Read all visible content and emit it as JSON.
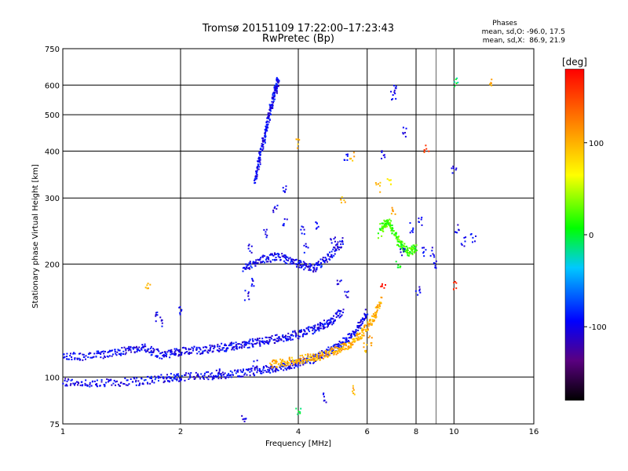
{
  "chart_data": {
    "type": "scatter",
    "title": "Tromsø 20151109 17:22:00–17:23:43",
    "subtitle": "RwPretec (Bp)",
    "xlabel": "Frequency [MHz]",
    "ylabel": "Stationary phase Virtual Height [km]",
    "x_scale": "log",
    "y_scale": "log",
    "xlim": [
      1,
      16
    ],
    "ylim": [
      75,
      750
    ],
    "x_ticks": [
      1,
      2,
      4,
      6,
      8,
      10,
      16
    ],
    "y_ticks": [
      75,
      100,
      200,
      300,
      400,
      500,
      600,
      750
    ],
    "grid": true,
    "phase_info": {
      "title": "Phases",
      "line1": "mean, sd,O: -96.0, 17.5",
      "line2": "mean, sd,X:  86.9, 21.9"
    },
    "colorbar": {
      "label": "[deg]",
      "ticks": [
        "100",
        "0",
        "-100"
      ],
      "tick_values": [
        100,
        0,
        -100
      ],
      "range": [
        -180,
        180
      ]
    },
    "traces": [
      {
        "name": "",
        "x": [
          1.0,
          1.2,
          1.5,
          1.8,
          2.0,
          2.4,
          2.8,
          3.2,
          3.6,
          4.0,
          4.4,
          4.8,
          5.2,
          5.6,
          6.0
        ],
        "y": [
          97,
          96,
          97,
          99,
          100,
          101,
          102,
          104,
          106,
          109,
          112,
          117,
          123,
          132,
          148
        ],
        "phase": -100
      },
      {
        "name": "",
        "x": [
          1.0,
          1.2,
          1.4,
          1.6,
          1.8,
          2.0,
          2.3,
          2.6,
          2.9,
          3.2,
          3.6,
          4.0,
          4.4,
          4.8,
          5.2
        ],
        "y": [
          113,
          114,
          117,
          120,
          114,
          117,
          118,
          120,
          122,
          124,
          127,
          130,
          134,
          140,
          150
        ],
        "phase": -100
      },
      {
        "name": "",
        "x": [
          3.4,
          3.8,
          4.2,
          4.6,
          5.0,
          5.4,
          5.8,
          6.2,
          6.5
        ],
        "y": [
          108,
          110,
          112,
          114,
          118,
          122,
          130,
          142,
          160
        ],
        "phase": 100
      },
      {
        "name": "",
        "x": [
          3.1,
          3.2,
          3.3,
          3.4,
          3.5,
          3.55
        ],
        "y": [
          330,
          390,
          450,
          520,
          580,
          620
        ],
        "phase": -100
      },
      {
        "name": "",
        "x": [
          2.9,
          3.2,
          3.6,
          4.0,
          4.4,
          4.8,
          5.2
        ],
        "y": [
          195,
          205,
          210,
          200,
          195,
          210,
          230
        ],
        "phase": -100
      },
      {
        "name": "",
        "x": [
          6.5,
          6.8,
          7.2,
          7.6,
          8.0
        ],
        "y": [
          250,
          260,
          230,
          215,
          220
        ],
        "phase": 20
      }
    ],
    "scatter_points": [
      {
        "x": 3.0,
        "y": 220,
        "phase": -100
      },
      {
        "x": 3.3,
        "y": 240,
        "phase": -100
      },
      {
        "x": 3.7,
        "y": 260,
        "phase": -100
      },
      {
        "x": 4.1,
        "y": 245,
        "phase": -100
      },
      {
        "x": 4.5,
        "y": 255,
        "phase": -100
      },
      {
        "x": 4.9,
        "y": 230,
        "phase": -100
      },
      {
        "x": 3.5,
        "y": 280,
        "phase": -100
      },
      {
        "x": 4.2,
        "y": 220,
        "phase": -100
      },
      {
        "x": 2.95,
        "y": 165,
        "phase": -100
      },
      {
        "x": 3.05,
        "y": 180,
        "phase": -100
      },
      {
        "x": 5.1,
        "y": 180,
        "phase": -100
      },
      {
        "x": 5.3,
        "y": 165,
        "phase": -100
      },
      {
        "x": 1.75,
        "y": 145,
        "phase": -100
      },
      {
        "x": 1.8,
        "y": 140,
        "phase": -100
      },
      {
        "x": 3.7,
        "y": 315,
        "phase": -100
      },
      {
        "x": 5.3,
        "y": 385,
        "phase": -100
      },
      {
        "x": 5.5,
        "y": 385,
        "phase": 100
      },
      {
        "x": 6.6,
        "y": 390,
        "phase": -100
      },
      {
        "x": 4.0,
        "y": 420,
        "phase": 100
      },
      {
        "x": 6.4,
        "y": 320,
        "phase": 100
      },
      {
        "x": 5.2,
        "y": 300,
        "phase": 100
      },
      {
        "x": 6.8,
        "y": 330,
        "phase": 60
      },
      {
        "x": 7.0,
        "y": 280,
        "phase": 100
      },
      {
        "x": 6.5,
        "y": 240,
        "phase": 20
      },
      {
        "x": 7.8,
        "y": 250,
        "phase": -100
      },
      {
        "x": 8.2,
        "y": 260,
        "phase": -100
      },
      {
        "x": 8.4,
        "y": 215,
        "phase": -100
      },
      {
        "x": 7.4,
        "y": 215,
        "phase": -100
      },
      {
        "x": 7.2,
        "y": 200,
        "phase": 0
      },
      {
        "x": 8.8,
        "y": 215,
        "phase": -100
      },
      {
        "x": 9.0,
        "y": 200,
        "phase": -100
      },
      {
        "x": 10.2,
        "y": 250,
        "phase": -100
      },
      {
        "x": 10.6,
        "y": 230,
        "phase": -100
      },
      {
        "x": 11.2,
        "y": 235,
        "phase": -100
      },
      {
        "x": 10.0,
        "y": 360,
        "phase": -100
      },
      {
        "x": 10.1,
        "y": 610,
        "phase": -10
      },
      {
        "x": 12.5,
        "y": 610,
        "phase": 100
      },
      {
        "x": 7.1,
        "y": 590,
        "phase": -100
      },
      {
        "x": 7.0,
        "y": 560,
        "phase": -100
      },
      {
        "x": 7.5,
        "y": 450,
        "phase": -100
      },
      {
        "x": 8.5,
        "y": 405,
        "phase": 150
      },
      {
        "x": 4.7,
        "y": 88,
        "phase": -100
      },
      {
        "x": 4.0,
        "y": 82,
        "phase": 0
      },
      {
        "x": 2.9,
        "y": 78,
        "phase": -100
      },
      {
        "x": 5.9,
        "y": 120,
        "phase": 100
      },
      {
        "x": 6.1,
        "y": 125,
        "phase": 100
      },
      {
        "x": 5.5,
        "y": 92,
        "phase": 100
      },
      {
        "x": 10.0,
        "y": 175,
        "phase": 170
      },
      {
        "x": 8.1,
        "y": 170,
        "phase": -100
      },
      {
        "x": 6.6,
        "y": 175,
        "phase": 170
      },
      {
        "x": 1.65,
        "y": 173,
        "phase": 100
      },
      {
        "x": 2.5,
        "y": 102,
        "phase": -100
      },
      {
        "x": 3.1,
        "y": 108,
        "phase": -100
      },
      {
        "x": 2.0,
        "y": 150,
        "phase": -100
      }
    ]
  }
}
